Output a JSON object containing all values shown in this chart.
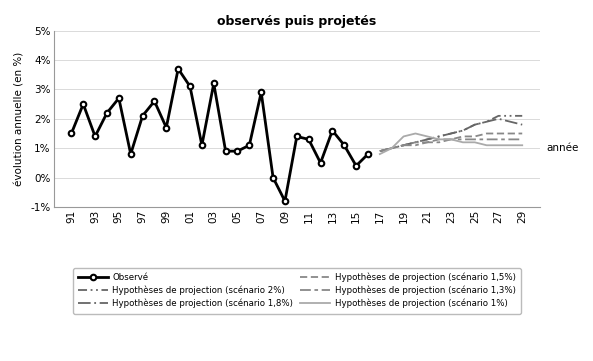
{
  "title": "observés puis projetés",
  "ylabel": "évolution annuelle (en %)",
  "xlabel": "année",
  "ylim": [
    -0.01,
    0.05
  ],
  "yticks": [
    -0.01,
    0.0,
    0.01,
    0.02,
    0.03,
    0.04,
    0.05
  ],
  "ytick_labels": [
    "-1%",
    "0%",
    "1%",
    "2%",
    "3%",
    "4%",
    "5%"
  ],
  "observed_years": [
    1991,
    1992,
    1993,
    1994,
    1995,
    1996,
    1997,
    1998,
    1999,
    2000,
    2001,
    2002,
    2003,
    2004,
    2005,
    2006,
    2007,
    2008,
    2009,
    2010,
    2011,
    2012,
    2013,
    2014,
    2015,
    2016
  ],
  "observed_values": [
    0.015,
    0.025,
    0.014,
    0.022,
    0.027,
    0.008,
    0.021,
    0.026,
    0.017,
    0.037,
    0.031,
    0.011,
    0.032,
    0.009,
    0.009,
    0.011,
    0.029,
    0.0,
    -0.008,
    0.014,
    0.013,
    0.005,
    0.016,
    0.011,
    0.004,
    0.008
  ],
  "proj_years": [
    2017,
    2018,
    2019,
    2020,
    2021,
    2022,
    2023,
    2024,
    2025,
    2026,
    2027,
    2028,
    2029
  ],
  "proj_s2_values": [
    0.009,
    0.01,
    0.011,
    0.012,
    0.013,
    0.014,
    0.015,
    0.016,
    0.018,
    0.019,
    0.021,
    0.021,
    0.021
  ],
  "proj_s18_values": [
    0.009,
    0.01,
    0.011,
    0.012,
    0.013,
    0.014,
    0.015,
    0.016,
    0.018,
    0.019,
    0.02,
    0.019,
    0.018
  ],
  "proj_s15_values": [
    0.009,
    0.01,
    0.011,
    0.012,
    0.012,
    0.013,
    0.013,
    0.014,
    0.014,
    0.015,
    0.015,
    0.015,
    0.015
  ],
  "proj_s13_values": [
    0.009,
    0.01,
    0.011,
    0.011,
    0.012,
    0.012,
    0.013,
    0.013,
    0.013,
    0.013,
    0.013,
    0.013,
    0.013
  ],
  "proj_s1_values": [
    0.008,
    0.01,
    0.014,
    0.015,
    0.014,
    0.013,
    0.013,
    0.012,
    0.012,
    0.011,
    0.011,
    0.011,
    0.011
  ],
  "xtick_years": [
    1991,
    1993,
    1995,
    1997,
    1999,
    2001,
    2003,
    2005,
    2007,
    2009,
    2011,
    2013,
    2015,
    2017,
    2019,
    2021,
    2023,
    2025,
    2027,
    2029
  ],
  "xtick_labels": [
    "91",
    "93",
    "95",
    "97",
    "99",
    "01",
    "03",
    "05",
    "07",
    "09",
    "11",
    "13",
    "15",
    "17",
    "19",
    "21",
    "23",
    "25",
    "27",
    "29"
  ],
  "background_color": "#ffffff"
}
